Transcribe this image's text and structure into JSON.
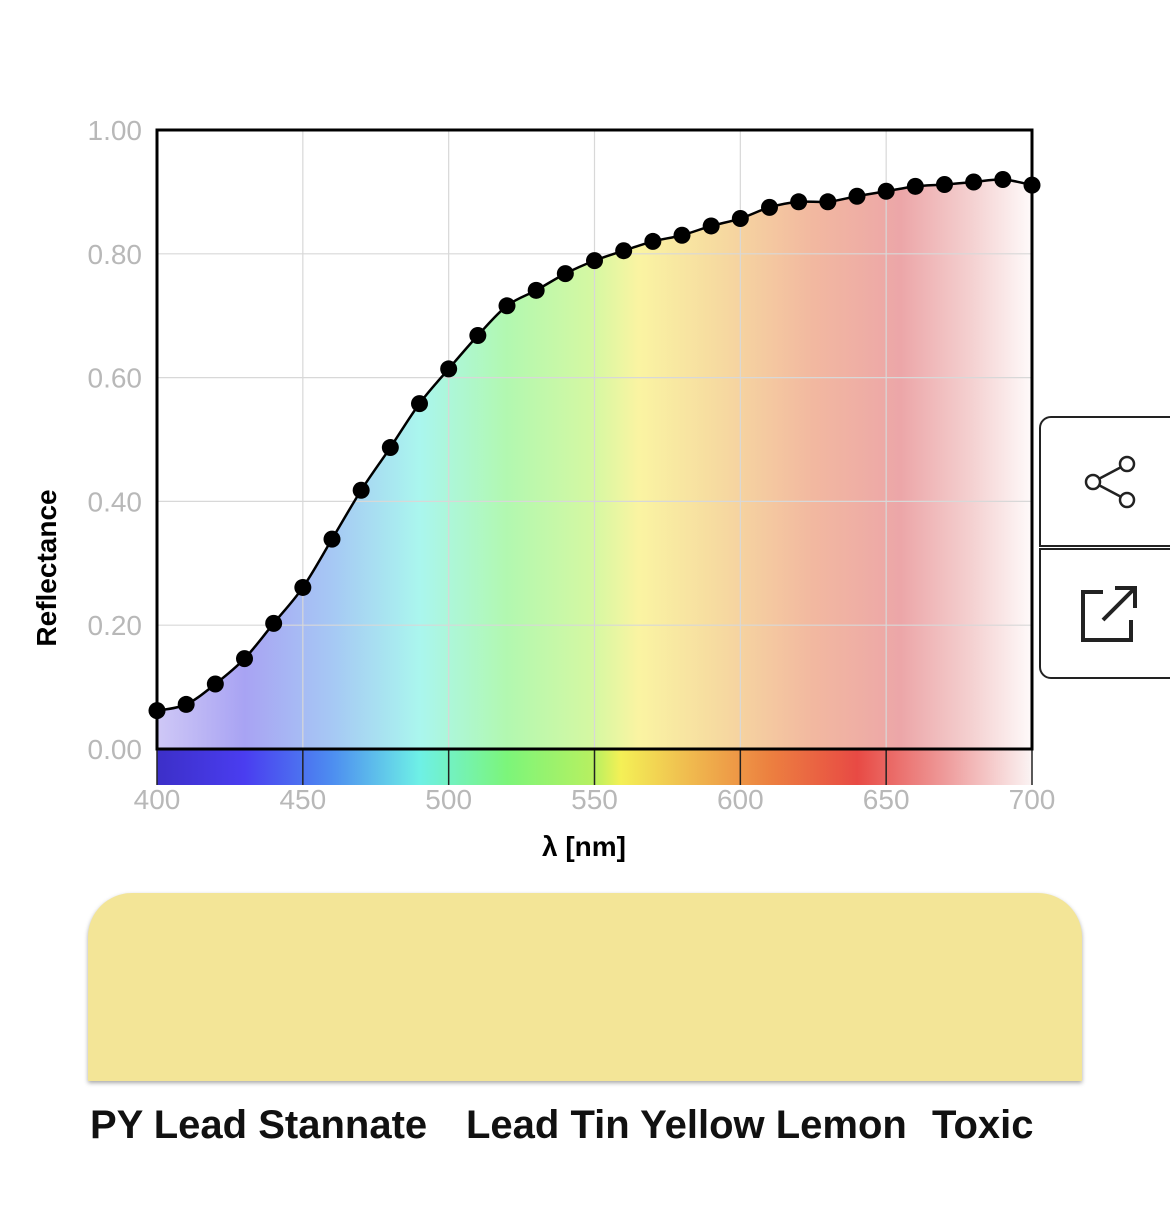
{
  "chart_data": {
    "type": "line",
    "xlabel": "λ [nm]",
    "ylabel": "Reflectance",
    "xlim": [
      400,
      700
    ],
    "ylim": [
      0,
      1
    ],
    "xticks": [
      "400",
      "450",
      "500",
      "550",
      "600",
      "650",
      "700"
    ],
    "yticks": [
      "0.00",
      "0.20",
      "0.40",
      "0.60",
      "0.80",
      "1.00"
    ],
    "grid": true,
    "series": [
      {
        "x": [
          400,
          410,
          420,
          430,
          440,
          450,
          460,
          470,
          480,
          490,
          500,
          510,
          520,
          530,
          540,
          550,
          560,
          570,
          580,
          590,
          600,
          610,
          620,
          630,
          640,
          650,
          660,
          670,
          680,
          690,
          700
        ],
        "y": [
          0.062,
          0.072,
          0.105,
          0.146,
          0.203,
          0.261,
          0.339,
          0.418,
          0.487,
          0.558,
          0.614,
          0.668,
          0.716,
          0.741,
          0.768,
          0.789,
          0.805,
          0.82,
          0.83,
          0.845,
          0.857,
          0.875,
          0.884,
          0.884,
          0.893,
          0.901,
          0.909,
          0.912,
          0.916,
          0.92,
          0.911
        ]
      }
    ]
  },
  "colors": {
    "swatch": "#f3e597",
    "curve": "#000000",
    "grid": "#d8d8d8",
    "tick_text": "#b8b8b8"
  },
  "icons": {
    "share": "share-icon",
    "open": "open-external-icon"
  },
  "paint": {
    "code": "PY Lead Stannate",
    "name": "Lead Tin Yellow Lemon",
    "toxicity": "Toxic"
  }
}
